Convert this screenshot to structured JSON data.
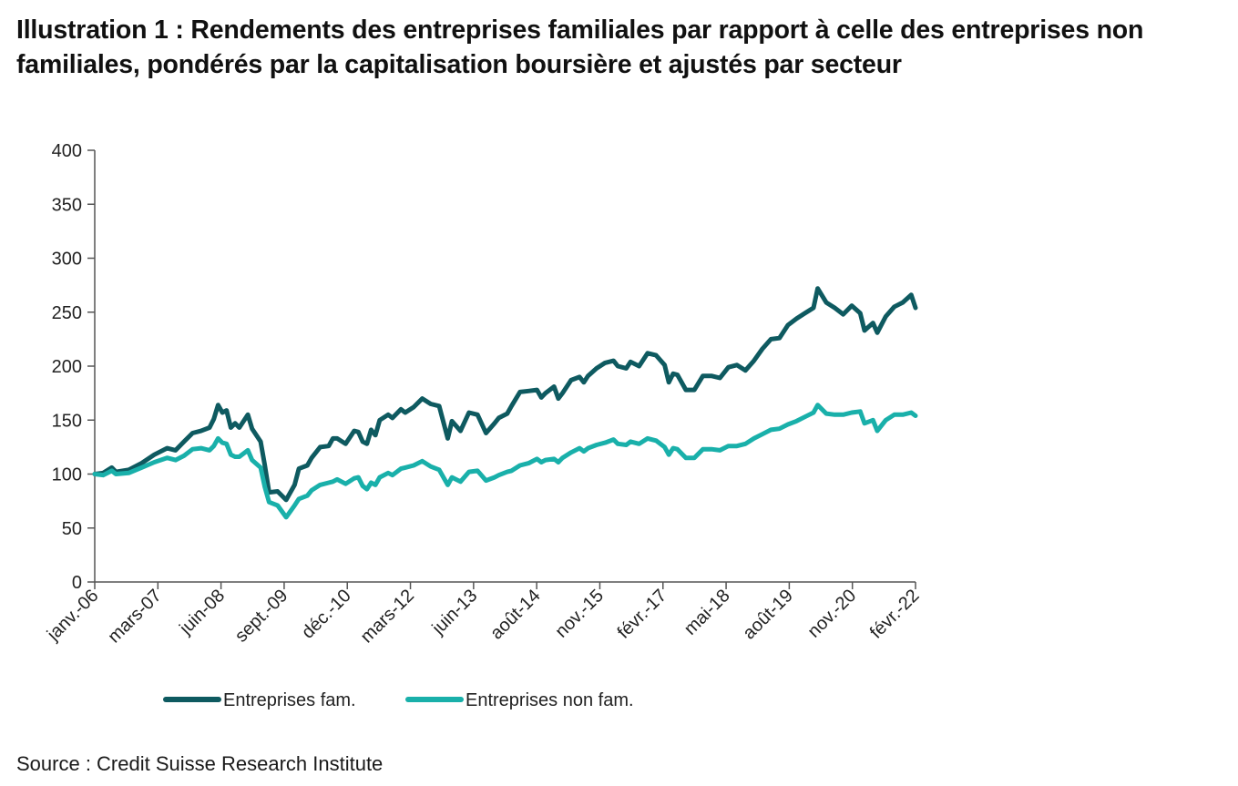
{
  "title": "Illustration 1 : Rendements des entreprises familiales par rapport à celle des entreprises non familiales, pondérés par la capitalisation boursière et ajustés par secteur",
  "source": "Source : Credit Suisse Research Institute",
  "chart_data": {
    "type": "line",
    "ylim": [
      0,
      400
    ],
    "y_ticks": [
      0,
      50,
      100,
      150,
      200,
      250,
      300,
      350,
      400
    ],
    "x_range": [
      "2006-01",
      "2022-02"
    ],
    "x_tick_labels": [
      "janv.-06",
      "mars-07",
      "juin-08",
      "sept.-09",
      "déc.-10",
      "mars-12",
      "juin-13",
      "août-14",
      "nov.-15",
      "févr.-17",
      "mai-18",
      "août-19",
      "nov.-20",
      "févr.-22"
    ],
    "grid": false,
    "legend_position": "bottom",
    "series": [
      {
        "name": "Entreprises fam.",
        "color": "#0e5a60",
        "points": [
          [
            "2006-01",
            100
          ],
          [
            "2006-03",
            101
          ],
          [
            "2006-05",
            106
          ],
          [
            "2006-06",
            102
          ],
          [
            "2006-09",
            104
          ],
          [
            "2006-12",
            110
          ],
          [
            "2007-03",
            118
          ],
          [
            "2007-06",
            124
          ],
          [
            "2007-08",
            122
          ],
          [
            "2007-10",
            130
          ],
          [
            "2007-12",
            138
          ],
          [
            "2008-02",
            140
          ],
          [
            "2008-04",
            143
          ],
          [
            "2008-05",
            151
          ],
          [
            "2008-06",
            164
          ],
          [
            "2008-07",
            157
          ],
          [
            "2008-08",
            159
          ],
          [
            "2008-09",
            143
          ],
          [
            "2008-10",
            147
          ],
          [
            "2008-11",
            143
          ],
          [
            "2009-01",
            155
          ],
          [
            "2009-02",
            142
          ],
          [
            "2009-04",
            130
          ],
          [
            "2009-05",
            108
          ],
          [
            "2009-06",
            83
          ],
          [
            "2009-08",
            84
          ],
          [
            "2009-10",
            76
          ],
          [
            "2009-12",
            90
          ],
          [
            "2010-01",
            105
          ],
          [
            "2010-03",
            108
          ],
          [
            "2010-04",
            115
          ],
          [
            "2010-06",
            125
          ],
          [
            "2010-08",
            126
          ],
          [
            "2010-09",
            133
          ],
          [
            "2010-10",
            133
          ],
          [
            "2010-12",
            128
          ],
          [
            "2011-02",
            140
          ],
          [
            "2011-03",
            139
          ],
          [
            "2011-04",
            130
          ],
          [
            "2011-05",
            128
          ],
          [
            "2011-06",
            141
          ],
          [
            "2011-07",
            136
          ],
          [
            "2011-08",
            150
          ],
          [
            "2011-10",
            155
          ],
          [
            "2011-11",
            152
          ],
          [
            "2012-01",
            160
          ],
          [
            "2012-02",
            157
          ],
          [
            "2012-04",
            162
          ],
          [
            "2012-06",
            170
          ],
          [
            "2012-08",
            165
          ],
          [
            "2012-10",
            163
          ],
          [
            "2012-12",
            133
          ],
          [
            "2013-01",
            149
          ],
          [
            "2013-03",
            140
          ],
          [
            "2013-05",
            157
          ],
          [
            "2013-07",
            155
          ],
          [
            "2013-09",
            138
          ],
          [
            "2013-11",
            147
          ],
          [
            "2013-12",
            152
          ],
          [
            "2014-02",
            156
          ],
          [
            "2014-03",
            163
          ],
          [
            "2014-05",
            176
          ],
          [
            "2014-07",
            177
          ],
          [
            "2014-09",
            178
          ],
          [
            "2014-10",
            171
          ],
          [
            "2014-11",
            175
          ],
          [
            "2015-01",
            181
          ],
          [
            "2015-02",
            170
          ],
          [
            "2015-03",
            175
          ],
          [
            "2015-05",
            187
          ],
          [
            "2015-07",
            190
          ],
          [
            "2015-08",
            185
          ],
          [
            "2015-09",
            191
          ],
          [
            "2015-11",
            198
          ],
          [
            "2016-01",
            203
          ],
          [
            "2016-03",
            205
          ],
          [
            "2016-04",
            200
          ],
          [
            "2016-06",
            198
          ],
          [
            "2016-07",
            204
          ],
          [
            "2016-09",
            200
          ],
          [
            "2016-11",
            212
          ],
          [
            "2017-01",
            210
          ],
          [
            "2017-03",
            201
          ],
          [
            "2017-04",
            185
          ],
          [
            "2017-05",
            193
          ],
          [
            "2017-06",
            192
          ],
          [
            "2017-08",
            178
          ],
          [
            "2017-10",
            178
          ],
          [
            "2017-12",
            191
          ],
          [
            "2018-02",
            191
          ],
          [
            "2018-04",
            189
          ],
          [
            "2018-06",
            199
          ],
          [
            "2018-08",
            201
          ],
          [
            "2018-10",
            196
          ],
          [
            "2018-12",
            205
          ],
          [
            "2019-02",
            216
          ],
          [
            "2019-04",
            225
          ],
          [
            "2019-06",
            226
          ],
          [
            "2019-08",
            238
          ],
          [
            "2019-10",
            244
          ],
          [
            "2019-12",
            249
          ],
          [
            "2020-02",
            254
          ],
          [
            "2020-03",
            272
          ],
          [
            "2020-05",
            259
          ],
          [
            "2020-07",
            254
          ],
          [
            "2020-09",
            248
          ],
          [
            "2020-11",
            256
          ],
          [
            "2021-01",
            249
          ],
          [
            "2021-02",
            233
          ],
          [
            "2021-04",
            240
          ],
          [
            "2021-05",
            231
          ],
          [
            "2021-07",
            246
          ],
          [
            "2021-09",
            255
          ],
          [
            "2021-11",
            259
          ],
          [
            "2022-01",
            266
          ],
          [
            "2022-02",
            254
          ]
        ]
      },
      {
        "name": "Entreprises non fam.",
        "color": "#19b0aa",
        "points": [
          [
            "2006-01",
            100
          ],
          [
            "2006-03",
            99
          ],
          [
            "2006-05",
            103
          ],
          [
            "2006-06",
            100
          ],
          [
            "2006-09",
            101
          ],
          [
            "2006-12",
            106
          ],
          [
            "2007-03",
            111
          ],
          [
            "2007-06",
            115
          ],
          [
            "2007-08",
            113
          ],
          [
            "2007-10",
            117
          ],
          [
            "2007-12",
            123
          ],
          [
            "2008-02",
            124
          ],
          [
            "2008-04",
            122
          ],
          [
            "2008-05",
            126
          ],
          [
            "2008-06",
            133
          ],
          [
            "2008-07",
            129
          ],
          [
            "2008-08",
            128
          ],
          [
            "2008-09",
            118
          ],
          [
            "2008-10",
            116
          ],
          [
            "2008-11",
            116
          ],
          [
            "2009-01",
            122
          ],
          [
            "2009-02",
            113
          ],
          [
            "2009-04",
            106
          ],
          [
            "2009-05",
            88
          ],
          [
            "2009-06",
            74
          ],
          [
            "2009-08",
            71
          ],
          [
            "2009-10",
            60
          ],
          [
            "2009-12",
            71
          ],
          [
            "2010-01",
            77
          ],
          [
            "2010-03",
            80
          ],
          [
            "2010-04",
            85
          ],
          [
            "2010-06",
            90
          ],
          [
            "2010-08",
            92
          ],
          [
            "2010-09",
            93
          ],
          [
            "2010-10",
            95
          ],
          [
            "2010-12",
            91
          ],
          [
            "2011-02",
            96
          ],
          [
            "2011-03",
            97
          ],
          [
            "2011-04",
            89
          ],
          [
            "2011-05",
            86
          ],
          [
            "2011-06",
            92
          ],
          [
            "2011-07",
            90
          ],
          [
            "2011-08",
            97
          ],
          [
            "2011-10",
            101
          ],
          [
            "2011-11",
            99
          ],
          [
            "2012-01",
            105
          ],
          [
            "2012-02",
            106
          ],
          [
            "2012-04",
            108
          ],
          [
            "2012-06",
            112
          ],
          [
            "2012-08",
            107
          ],
          [
            "2012-10",
            104
          ],
          [
            "2012-12",
            90
          ],
          [
            "2013-01",
            97
          ],
          [
            "2013-03",
            93
          ],
          [
            "2013-05",
            102
          ],
          [
            "2013-07",
            103
          ],
          [
            "2013-09",
            94
          ],
          [
            "2013-11",
            97
          ],
          [
            "2013-12",
            99
          ],
          [
            "2014-02",
            102
          ],
          [
            "2014-03",
            103
          ],
          [
            "2014-05",
            108
          ],
          [
            "2014-07",
            110
          ],
          [
            "2014-09",
            114
          ],
          [
            "2014-10",
            111
          ],
          [
            "2014-11",
            113
          ],
          [
            "2015-01",
            114
          ],
          [
            "2015-02",
            111
          ],
          [
            "2015-03",
            115
          ],
          [
            "2015-05",
            120
          ],
          [
            "2015-07",
            124
          ],
          [
            "2015-08",
            121
          ],
          [
            "2015-09",
            124
          ],
          [
            "2015-11",
            127
          ],
          [
            "2016-01",
            129
          ],
          [
            "2016-03",
            132
          ],
          [
            "2016-04",
            128
          ],
          [
            "2016-06",
            127
          ],
          [
            "2016-07",
            130
          ],
          [
            "2016-09",
            128
          ],
          [
            "2016-11",
            133
          ],
          [
            "2017-01",
            131
          ],
          [
            "2017-03",
            125
          ],
          [
            "2017-04",
            118
          ],
          [
            "2017-05",
            124
          ],
          [
            "2017-06",
            123
          ],
          [
            "2017-08",
            115
          ],
          [
            "2017-10",
            115
          ],
          [
            "2017-12",
            123
          ],
          [
            "2018-02",
            123
          ],
          [
            "2018-04",
            122
          ],
          [
            "2018-06",
            126
          ],
          [
            "2018-08",
            126
          ],
          [
            "2018-10",
            128
          ],
          [
            "2018-12",
            133
          ],
          [
            "2019-02",
            137
          ],
          [
            "2019-04",
            141
          ],
          [
            "2019-06",
            142
          ],
          [
            "2019-08",
            146
          ],
          [
            "2019-10",
            149
          ],
          [
            "2019-12",
            153
          ],
          [
            "2020-02",
            157
          ],
          [
            "2020-03",
            164
          ],
          [
            "2020-05",
            156
          ],
          [
            "2020-07",
            155
          ],
          [
            "2020-09",
            155
          ],
          [
            "2020-11",
            157
          ],
          [
            "2021-01",
            158
          ],
          [
            "2021-02",
            147
          ],
          [
            "2021-04",
            150
          ],
          [
            "2021-05",
            140
          ],
          [
            "2021-07",
            150
          ],
          [
            "2021-09",
            155
          ],
          [
            "2021-11",
            155
          ],
          [
            "2022-01",
            157
          ],
          [
            "2022-02",
            154
          ]
        ]
      }
    ]
  }
}
